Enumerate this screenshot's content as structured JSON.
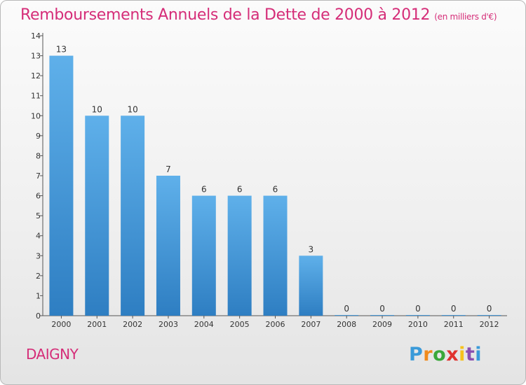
{
  "chart_data": {
    "type": "bar",
    "title": "Remboursements Annuels de la Dette de 2000 à 2012",
    "unit_note": "(en milliers d'€)",
    "xlabel": "",
    "ylabel": "",
    "categories": [
      "2000",
      "2001",
      "2002",
      "2003",
      "2004",
      "2005",
      "2006",
      "2007",
      "2008",
      "2009",
      "2010",
      "2011",
      "2012"
    ],
    "values": [
      13,
      10,
      10,
      7,
      6,
      6,
      6,
      3,
      0,
      0,
      0,
      0,
      0
    ],
    "ylim": [
      0,
      14
    ],
    "yticks": [
      "0",
      "1",
      "2",
      "3",
      "4",
      "5",
      "6",
      "7",
      "8",
      "9",
      "10",
      "11",
      "12",
      "13",
      "14"
    ],
    "grid": false,
    "bar_color": "#4d9fdc"
  },
  "commune": "DAIGNY",
  "logo": {
    "letters": [
      "P",
      "r",
      "o",
      "x",
      "i",
      "t",
      "i"
    ]
  }
}
